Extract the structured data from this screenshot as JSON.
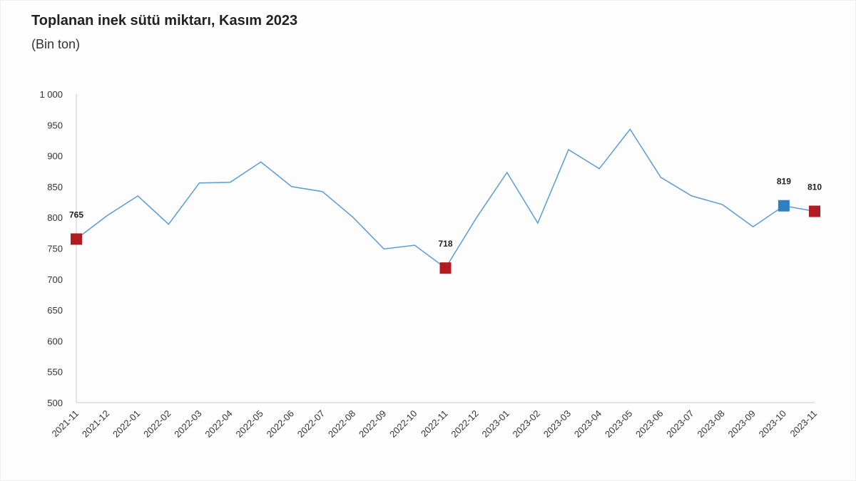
{
  "chart_data": {
    "type": "line",
    "title": "Toplanan inek sütü miktarı, Kasım 2023",
    "subtitle": "(Bin ton)",
    "categories": [
      "2021-11",
      "2021-12",
      "2022-01",
      "2022-02",
      "2022-03",
      "2022-04",
      "2022-05",
      "2022-06",
      "2022-07",
      "2022-08",
      "2022-09",
      "2022-10",
      "2022-11",
      "2022-12",
      "2023-01",
      "2023-02",
      "2023-03",
      "2023-04",
      "2023-05",
      "2023-06",
      "2023-07",
      "2023-08",
      "2023-09",
      "2023-10",
      "2023-11"
    ],
    "values": [
      765,
      803,
      835,
      789,
      856,
      857,
      890,
      850,
      842,
      800,
      749,
      755,
      718,
      799,
      873,
      791,
      910,
      879,
      943,
      865,
      835,
      821,
      785,
      819,
      810
    ],
    "ylim": [
      500,
      1000
    ],
    "yticks": [
      500,
      550,
      600,
      650,
      700,
      750,
      800,
      850,
      900,
      950,
      1000
    ],
    "ytick_labels": [
      "500",
      "550",
      "600",
      "650",
      "700",
      "750",
      "800",
      "850",
      "900",
      "950",
      "1 000"
    ],
    "grid": false,
    "line_color": "#5b9bd5",
    "markers": [
      {
        "category": "2021-11",
        "label": "765",
        "color": "#b01c22"
      },
      {
        "category": "2022-11",
        "label": "718",
        "color": "#b01c22"
      },
      {
        "category": "2023-10",
        "label": "819",
        "color": "#2f7fc0"
      },
      {
        "category": "2023-11",
        "label": "810",
        "color": "#b01c22"
      }
    ]
  }
}
